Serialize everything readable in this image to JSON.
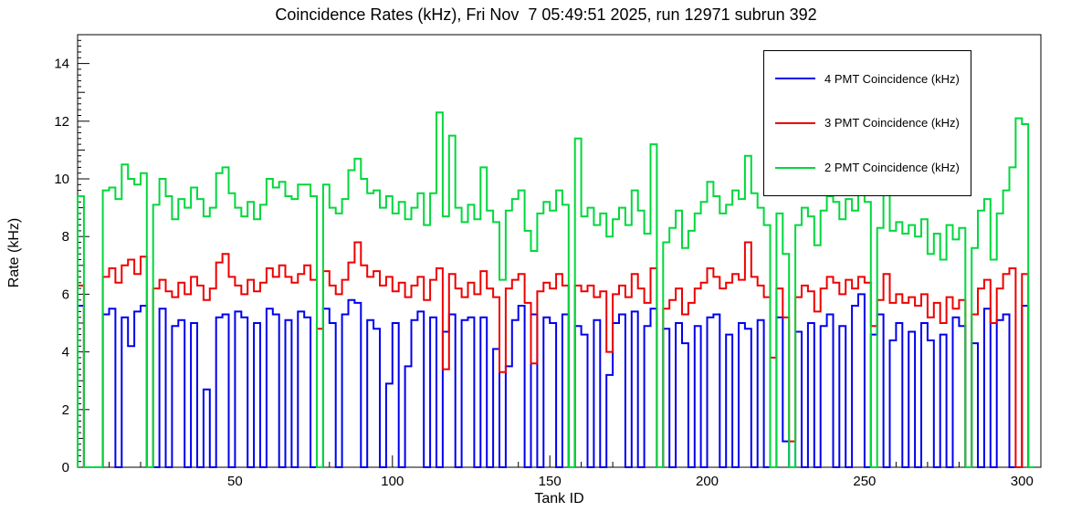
{
  "chart_data": {
    "type": "line",
    "step": true,
    "title": "Coincidence Rates (kHz), Fri Nov  7 05:49:51 2025, run 12971 subrun 392",
    "xlabel": "Tank ID",
    "ylabel": "Rate (kHz)",
    "xlim": [
      0,
      306
    ],
    "ylim": [
      0,
      15
    ],
    "x_ticks_major": [
      50,
      100,
      150,
      200,
      250,
      300
    ],
    "y_ticks_major": [
      0,
      2,
      4,
      6,
      8,
      10,
      12,
      14
    ],
    "x_minor_step": 10,
    "y_minor_step": 0.2,
    "bin_start": 0,
    "bin_width": 2,
    "grid": false,
    "legend_position": "top-right",
    "frame_color": "#000000",
    "background_color": "#ffffff",
    "series": [
      {
        "name": "4 PMT Coincidence (kHz)",
        "color": "#0000ee",
        "values": [
          5.6,
          0,
          0,
          0,
          5.3,
          5.5,
          0,
          5.2,
          4.2,
          5.4,
          5.6,
          0,
          0,
          5.5,
          0,
          4.9,
          5.1,
          0,
          5.0,
          0,
          2.7,
          0,
          5.2,
          5.3,
          0,
          5.4,
          5.2,
          0,
          5.0,
          0,
          5.5,
          5.3,
          0,
          5.1,
          0,
          5.4,
          5.2,
          0,
          0,
          5.5,
          5.0,
          0,
          5.3,
          5.8,
          5.7,
          0,
          5.1,
          4.8,
          0,
          2.9,
          5.0,
          0,
          3.5,
          5.1,
          5.4,
          0,
          5.2,
          0,
          4.7,
          5.3,
          0,
          5.1,
          5.2,
          0,
          5.2,
          0,
          4.1,
          0,
          3.5,
          5.1,
          5.6,
          0,
          5.3,
          0,
          5.2,
          5.0,
          0,
          5.3,
          0,
          4.9,
          4.6,
          0,
          5.1,
          0,
          3.2,
          5.0,
          5.3,
          0,
          5.4,
          0,
          4.9,
          5.5,
          0,
          4.8,
          0,
          5.0,
          4.3,
          0,
          4.9,
          0,
          5.2,
          5.3,
          0,
          4.6,
          0,
          5.0,
          4.8,
          0,
          5.1,
          0,
          0,
          5.2,
          0.9,
          0,
          4.7,
          0,
          5.0,
          0,
          4.9,
          5.3,
          0,
          4.9,
          0,
          5.6,
          6.0,
          0,
          4.6,
          5.3,
          0,
          4.4,
          5.0,
          0,
          4.7,
          0,
          5.0,
          4.4,
          0,
          4.6,
          0,
          5.2,
          4.9,
          0,
          4.3,
          0,
          5.5,
          0,
          5.1,
          5.3,
          0,
          0,
          5.6,
          0
        ]
      },
      {
        "name": "3 PMT Coincidence (kHz)",
        "color": "#ee0000",
        "values": [
          6.3,
          0,
          0,
          0,
          6.6,
          6.9,
          6.4,
          7.0,
          7.2,
          6.7,
          7.3,
          0,
          6.2,
          6.5,
          6.1,
          5.9,
          6.4,
          6.0,
          6.6,
          6.3,
          5.8,
          6.2,
          7.1,
          7.4,
          6.6,
          6.3,
          6.0,
          6.5,
          6.1,
          6.4,
          6.9,
          6.6,
          7.0,
          6.6,
          6.4,
          6.7,
          7.0,
          6.5,
          4.8,
          6.8,
          6.3,
          6.0,
          6.5,
          7.1,
          7.8,
          7.0,
          6.6,
          6.8,
          6.3,
          6.6,
          6.1,
          6.4,
          5.9,
          6.3,
          6.6,
          5.8,
          6.5,
          6.9,
          3.4,
          6.7,
          6.2,
          5.9,
          6.4,
          6.0,
          6.8,
          6.2,
          5.9,
          3.3,
          6.2,
          6.5,
          6.7,
          5.7,
          3.6,
          6.1,
          6.4,
          6.2,
          6.7,
          6.3,
          0,
          6.3,
          6.1,
          6.3,
          5.9,
          6.1,
          4.0,
          6.0,
          6.3,
          5.9,
          6.7,
          6.2,
          5.7,
          6.9,
          0,
          5.5,
          5.8,
          6.2,
          5.3,
          5.7,
          6.2,
          6.4,
          6.9,
          6.6,
          6.2,
          6.4,
          6.7,
          6.5,
          7.8,
          6.6,
          6.3,
          5.9,
          3.8,
          6.2,
          5.2,
          0.9,
          5.9,
          6.3,
          6.1,
          5.4,
          6.2,
          6.6,
          6.4,
          6.0,
          6.5,
          6.2,
          6.6,
          6.4,
          4.9,
          5.8,
          6.7,
          5.7,
          6.0,
          5.7,
          5.9,
          5.6,
          6.0,
          5.2,
          5.7,
          5.0,
          5.9,
          5.5,
          5.8,
          0,
          5.3,
          6.2,
          6.5,
          5.0,
          6.2,
          6.7,
          6.9,
          0,
          6.7,
          0
        ]
      },
      {
        "name": "2 PMT Coincidence (kHz)",
        "color": "#00d83c",
        "values": [
          9.4,
          0,
          0,
          0,
          9.6,
          9.7,
          9.3,
          10.5,
          10.0,
          9.8,
          10.2,
          0,
          9.1,
          10.0,
          9.4,
          8.6,
          9.3,
          9.0,
          9.7,
          9.3,
          8.7,
          9.0,
          10.2,
          10.4,
          9.5,
          9.0,
          8.7,
          9.2,
          8.6,
          9.1,
          10.0,
          9.7,
          9.9,
          9.4,
          9.3,
          9.8,
          9.8,
          9.4,
          0,
          9.8,
          9.0,
          8.8,
          9.3,
          10.3,
          10.7,
          10.0,
          9.5,
          9.6,
          9.0,
          9.4,
          8.8,
          9.2,
          8.6,
          9.0,
          9.5,
          8.4,
          9.5,
          12.3,
          8.7,
          11.5,
          9.0,
          8.5,
          9.1,
          8.6,
          10.4,
          8.9,
          8.5,
          6.5,
          8.9,
          9.3,
          9.6,
          8.2,
          7.5,
          8.8,
          9.2,
          8.9,
          9.6,
          9.1,
          0,
          11.4,
          8.7,
          9.0,
          8.4,
          8.8,
          8.0,
          8.6,
          9.0,
          8.4,
          9.6,
          8.9,
          8.1,
          11.2,
          0,
          7.8,
          8.3,
          8.9,
          7.6,
          8.2,
          8.8,
          9.2,
          9.9,
          9.4,
          8.8,
          9.1,
          9.6,
          9.3,
          10.8,
          9.5,
          9.0,
          8.4,
          0,
          8.8,
          7.4,
          0,
          8.4,
          9.0,
          8.7,
          7.7,
          8.9,
          9.4,
          9.2,
          8.6,
          9.3,
          8.9,
          9.5,
          9.2,
          0,
          8.3,
          9.6,
          8.2,
          8.5,
          8.1,
          8.4,
          8.0,
          8.6,
          7.4,
          8.1,
          7.2,
          8.4,
          7.9,
          8.3,
          0,
          7.6,
          8.9,
          9.3,
          7.2,
          8.8,
          9.6,
          10.4,
          12.1,
          11.9,
          0
        ]
      }
    ]
  }
}
